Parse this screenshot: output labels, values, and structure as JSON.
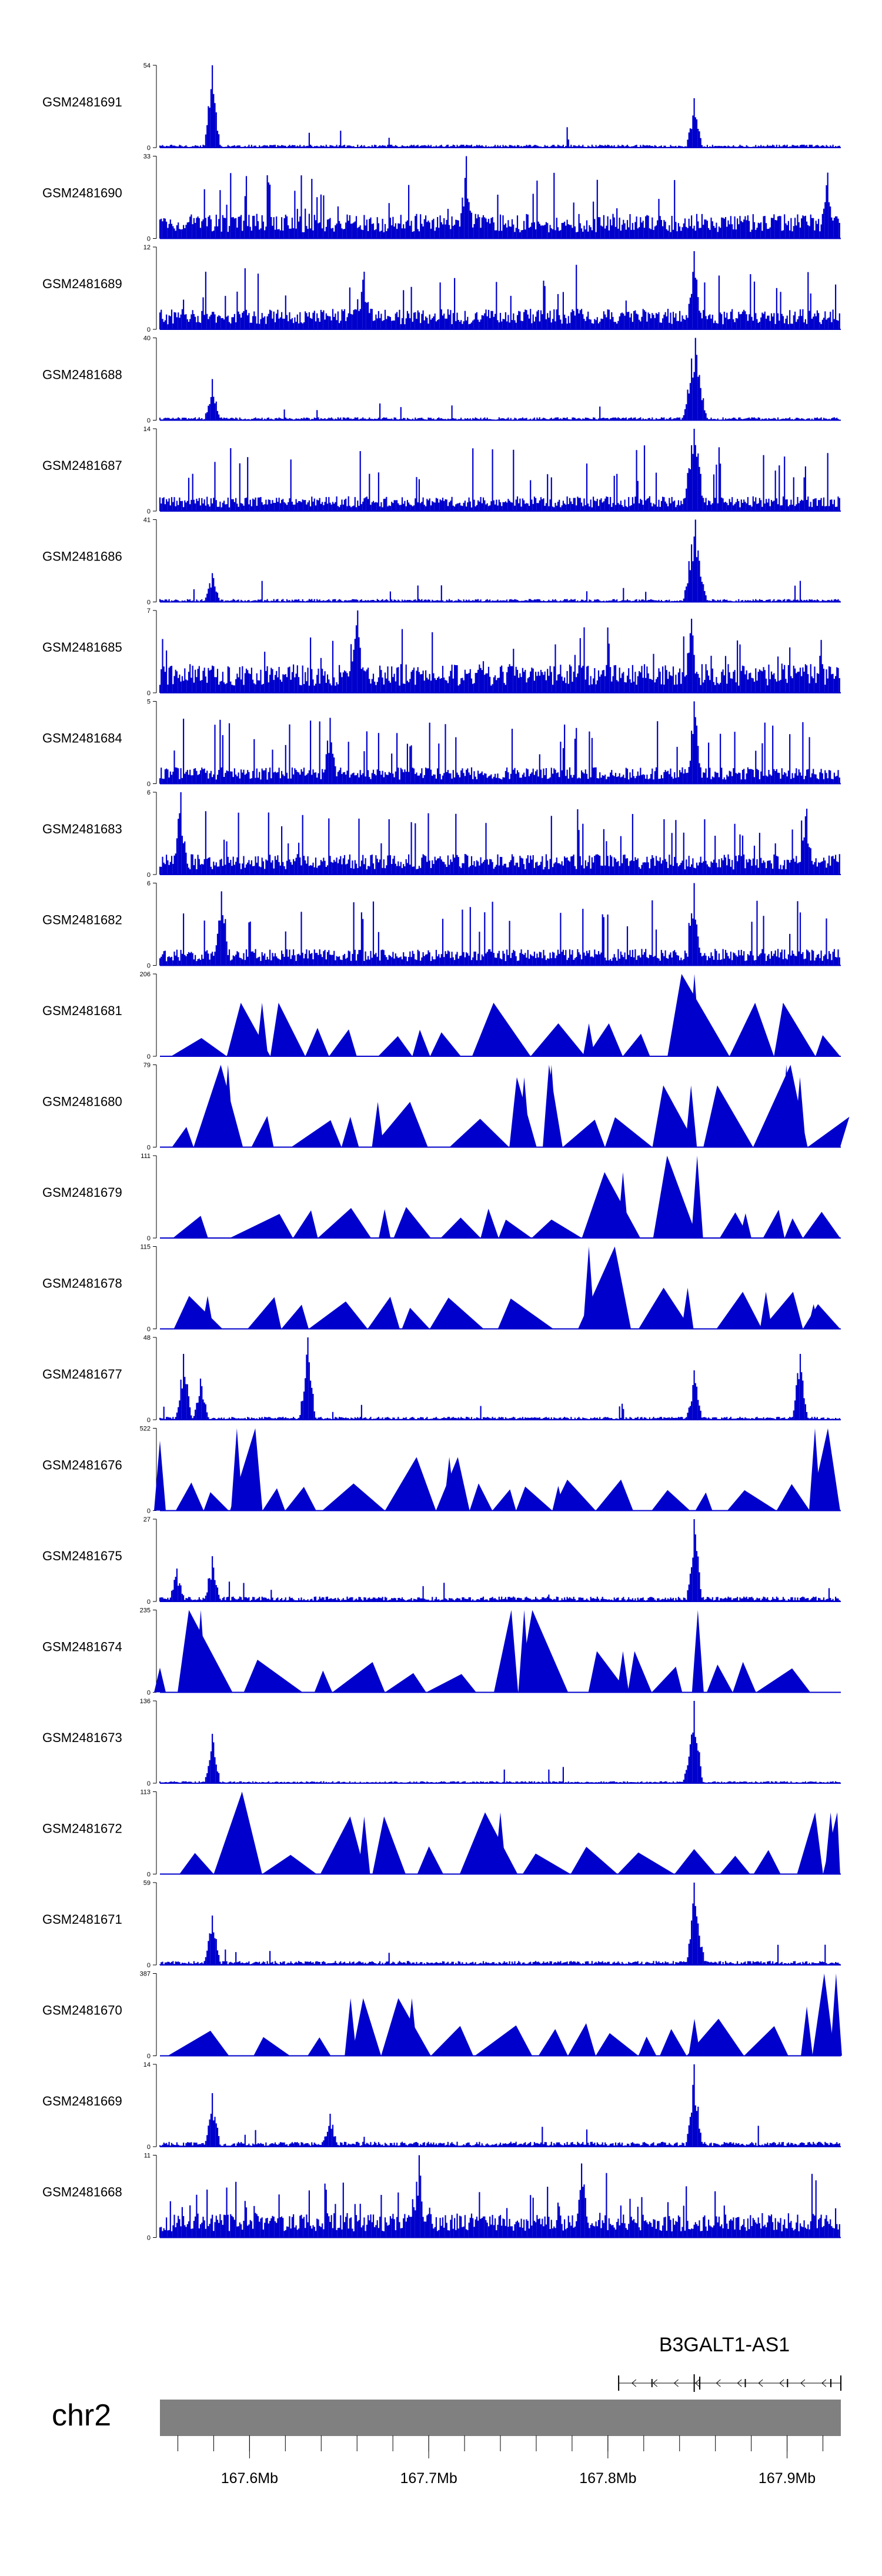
{
  "chart_data": {
    "type": "coverage-tracks",
    "colors": {
      "signal": "#0000CC",
      "axis": "#000000",
      "ideogram": "#808080",
      "gene": "#000000"
    },
    "x_range_mb": [
      167.55,
      167.93
    ],
    "tracks": [
      {
        "label": "GSM2481691",
        "ymax": "54",
        "ymax_value": 54,
        "style": "spiky",
        "baseline": 0.03,
        "peaks": [
          [
            0.077,
            1.0
          ],
          [
            0.785,
            0.6
          ]
        ]
      },
      {
        "label": "GSM2481690",
        "ymax": "33",
        "ymax_value": 33,
        "style": "dense",
        "baseline": 0.3,
        "peaks": [
          [
            0.45,
            1.0
          ],
          [
            0.98,
            0.8
          ]
        ]
      },
      {
        "label": "GSM2481689",
        "ymax": "12",
        "ymax_value": 12,
        "style": "dense",
        "baseline": 0.25,
        "peaks": [
          [
            0.785,
            0.95
          ],
          [
            0.3,
            0.7
          ]
        ]
      },
      {
        "label": "GSM2481688",
        "ymax": "40",
        "ymax_value": 40,
        "style": "spiky",
        "baseline": 0.03,
        "peaks": [
          [
            0.077,
            0.5
          ],
          [
            0.787,
            1.0
          ],
          [
            0.78,
            0.75
          ],
          [
            0.792,
            0.55
          ]
        ]
      },
      {
        "label": "GSM2481687",
        "ymax": "14",
        "ymax_value": 14,
        "style": "dense",
        "baseline": 0.18,
        "peaks": [
          [
            0.785,
            1.0
          ],
          [
            0.78,
            0.8
          ],
          [
            0.79,
            0.7
          ]
        ]
      },
      {
        "label": "GSM2481686",
        "ymax": "41",
        "ymax_value": 41,
        "style": "spiky",
        "baseline": 0.03,
        "peaks": [
          [
            0.077,
            0.35
          ],
          [
            0.787,
            1.0
          ],
          [
            0.78,
            0.7
          ],
          [
            0.792,
            0.5
          ]
        ]
      },
      {
        "label": "GSM2481685",
        "ymax": "7",
        "ymax_value": 7,
        "style": "dense",
        "baseline": 0.35,
        "peaks": [
          [
            0.29,
            1.0
          ],
          [
            0.78,
            0.9
          ]
        ]
      },
      {
        "label": "GSM2481684",
        "ymax": "5",
        "ymax_value": 5,
        "style": "dense",
        "baseline": 0.2,
        "peaks": [
          [
            0.785,
            1.0
          ],
          [
            0.25,
            0.8
          ]
        ]
      },
      {
        "label": "GSM2481683",
        "ymax": "6",
        "ymax_value": 6,
        "style": "dense",
        "baseline": 0.25,
        "peaks": [
          [
            0.03,
            1.0
          ],
          [
            0.95,
            0.8
          ]
        ]
      },
      {
        "label": "GSM2481682",
        "ymax": "6",
        "ymax_value": 6,
        "style": "dense",
        "baseline": 0.2,
        "peaks": [
          [
            0.785,
            1.0
          ],
          [
            0.09,
            0.9
          ]
        ]
      },
      {
        "label": "GSM2481681",
        "ymax": "206",
        "ymax_value": 206,
        "style": "tri",
        "peaks": [
          [
            0.785,
            1.0
          ],
          [
            0.15,
            0.65
          ],
          [
            0.49,
            0.65
          ],
          [
            0.915,
            0.65
          ],
          [
            0.63,
            0.4
          ]
        ]
      },
      {
        "label": "GSM2481680",
        "ymax": "79",
        "ymax_value": 79,
        "style": "tri",
        "peaks": [
          [
            0.1,
            1.0
          ],
          [
            0.575,
            1.0
          ],
          [
            0.92,
            1.0
          ],
          [
            0.535,
            0.85
          ],
          [
            0.94,
            0.85
          ],
          [
            0.78,
            0.75
          ],
          [
            0.32,
            0.55
          ]
        ]
      },
      {
        "label": "GSM2481679",
        "ymax": "111",
        "ymax_value": 111,
        "style": "tri",
        "peaks": [
          [
            0.789,
            1.0
          ],
          [
            0.68,
            0.8
          ],
          [
            0.86,
            0.3
          ],
          [
            0.33,
            0.35
          ]
        ]
      },
      {
        "label": "GSM2481678",
        "ymax": "115",
        "ymax_value": 115,
        "style": "tri",
        "peaks": [
          [
            0.63,
            1.0
          ],
          [
            0.89,
            0.45
          ],
          [
            0.775,
            0.5
          ],
          [
            0.07,
            0.4
          ],
          [
            0.96,
            0.3
          ]
        ]
      },
      {
        "label": "GSM2481677",
        "ymax": "48",
        "ymax_value": 48,
        "style": "spiky",
        "baseline": 0.03,
        "peaks": [
          [
            0.217,
            1.0
          ],
          [
            0.035,
            0.8
          ],
          [
            0.94,
            0.8
          ],
          [
            0.785,
            0.6
          ],
          [
            0.06,
            0.5
          ]
        ]
      },
      {
        "label": "GSM2481676",
        "ymax": "522",
        "ymax_value": 522,
        "style": "tri",
        "peaks": [
          [
            0.962,
            1.0
          ],
          [
            0.113,
            1.0
          ],
          [
            0.0,
            0.85
          ],
          [
            0.425,
            0.65
          ],
          [
            0.585,
            0.3
          ]
        ]
      },
      {
        "label": "GSM2481675",
        "ymax": "27",
        "ymax_value": 27,
        "style": "spiky",
        "baseline": 0.05,
        "peaks": [
          [
            0.785,
            1.0
          ],
          [
            0.077,
            0.55
          ],
          [
            0.025,
            0.4
          ]
        ]
      },
      {
        "label": "GSM2481674",
        "ymax": "235",
        "ymax_value": 235,
        "style": "tri",
        "peaks": [
          [
            0.535,
            1.0
          ],
          [
            0.06,
            1.0
          ],
          [
            0.79,
            1.0
          ],
          [
            0.68,
            0.5
          ],
          [
            0.0,
            0.3
          ]
        ]
      },
      {
        "label": "GSM2481673",
        "ymax": "136",
        "ymax_value": 136,
        "style": "spiky",
        "baseline": 0.02,
        "peaks": [
          [
            0.077,
            0.6
          ],
          [
            0.785,
            1.0
          ],
          [
            0.78,
            0.55
          ]
        ]
      },
      {
        "label": "GSM2481672",
        "ymax": "113",
        "ymax_value": 113,
        "style": "tri",
        "peaks": [
          [
            0.12,
            1.0
          ],
          [
            0.985,
            0.75
          ],
          [
            0.5,
            0.75
          ],
          [
            0.3,
            0.7
          ]
        ]
      },
      {
        "label": "GSM2481671",
        "ymax": "59",
        "ymax_value": 59,
        "style": "spiky",
        "baseline": 0.04,
        "peaks": [
          [
            0.785,
            1.0
          ],
          [
            0.077,
            0.6
          ],
          [
            0.79,
            0.5
          ]
        ]
      },
      {
        "label": "GSM2481670",
        "ymax": "387",
        "ymax_value": 387,
        "style": "tri",
        "peaks": [
          [
            0.993,
            1.0
          ],
          [
            0.28,
            0.7
          ],
          [
            0.37,
            0.7
          ],
          [
            0.95,
            0.6
          ],
          [
            0.785,
            0.45
          ]
        ]
      },
      {
        "label": "GSM2481669",
        "ymax": "14",
        "ymax_value": 14,
        "style": "spiky",
        "baseline": 0.05,
        "peaks": [
          [
            0.785,
            1.0
          ],
          [
            0.077,
            0.65
          ],
          [
            0.25,
            0.4
          ]
        ]
      },
      {
        "label": "GSM2481668",
        "ymax": "11",
        "ymax_value": 11,
        "style": "dense",
        "baseline": 0.3,
        "peaks": [
          [
            0.38,
            1.0
          ],
          [
            0.62,
            0.9
          ]
        ]
      }
    ],
    "gene": {
      "name": "B3GALT1-AS1",
      "start_mb": 167.806,
      "end_mb": 167.93,
      "strand": "-"
    },
    "chromosome": "chr2",
    "axis_ticks": [
      {
        "label": "167.6Mb",
        "value": 167.6
      },
      {
        "label": "167.7Mb",
        "value": 167.7
      },
      {
        "label": "167.8Mb",
        "value": 167.8
      },
      {
        "label": "167.9Mb",
        "value": 167.9
      }
    ],
    "minor_tick_step_mb": 0.02
  }
}
